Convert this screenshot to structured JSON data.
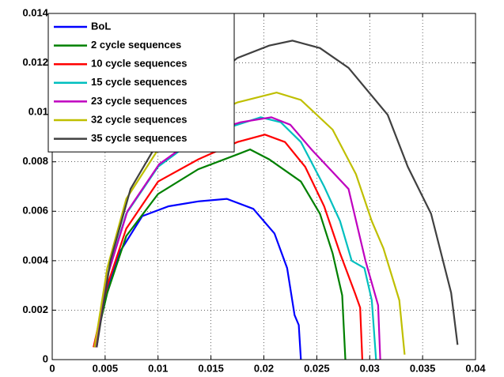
{
  "chart_data": {
    "type": "line",
    "xlim": [
      0,
      0.04
    ],
    "ylim": [
      0,
      0.014
    ],
    "xticks": [
      0,
      0.005,
      0.01,
      0.015,
      0.02,
      0.025,
      0.03,
      0.035,
      0.04
    ],
    "yticks": [
      0,
      0.002,
      0.004,
      0.006,
      0.008,
      0.01,
      0.012,
      0.014
    ],
    "grid": true,
    "legend": "northwest",
    "series": [
      {
        "name": "BoL",
        "color": "#0000ff",
        "x": [
          0.0042,
          0.0048,
          0.0063,
          0.0085,
          0.011,
          0.0138,
          0.0165,
          0.019,
          0.021,
          0.0222,
          0.0229,
          0.0233,
          0.0235
        ],
        "values": [
          0.0005,
          0.0024,
          0.0043,
          0.0058,
          0.0062,
          0.0064,
          0.0065,
          0.0061,
          0.0051,
          0.0037,
          0.0018,
          0.0014,
          0.0
        ]
      },
      {
        "name": "2 cycle sequences",
        "color": "#008000",
        "x": [
          0.004,
          0.0052,
          0.007,
          0.01,
          0.0138,
          0.0175,
          0.0187,
          0.0205,
          0.0235,
          0.0253,
          0.0265,
          0.0274,
          0.0277
        ],
        "values": [
          0.0005,
          0.0027,
          0.005,
          0.0067,
          0.0077,
          0.0083,
          0.0085,
          0.0081,
          0.0072,
          0.0059,
          0.0043,
          0.0026,
          0.0
        ]
      },
      {
        "name": "10 cycle sequences",
        "color": "#ff0000",
        "x": [
          0.0039,
          0.0052,
          0.007,
          0.01,
          0.0138,
          0.0175,
          0.0201,
          0.022,
          0.0239,
          0.0257,
          0.0272,
          0.0286,
          0.0291,
          0.0293
        ],
        "values": [
          0.0005,
          0.003,
          0.0053,
          0.0072,
          0.0081,
          0.0088,
          0.0091,
          0.0088,
          0.0078,
          0.0062,
          0.0043,
          0.0027,
          0.0021,
          0.0
        ]
      },
      {
        "name": "15 cycle sequences",
        "color": "#00bfbf",
        "x": [
          0.004,
          0.0052,
          0.007,
          0.01,
          0.0138,
          0.0175,
          0.0197,
          0.0216,
          0.0235,
          0.0257,
          0.0272,
          0.0283,
          0.0295,
          0.0302,
          0.0306
        ],
        "values": [
          0.0005,
          0.0034,
          0.0059,
          0.0078,
          0.009,
          0.0095,
          0.0098,
          0.0096,
          0.0088,
          0.007,
          0.0056,
          0.004,
          0.0037,
          0.0024,
          0.0
        ]
      },
      {
        "name": "23 cycle sequences",
        "color": "#bf00bf",
        "x": [
          0.0041,
          0.0053,
          0.0071,
          0.0101,
          0.014,
          0.0178,
          0.0207,
          0.0225,
          0.0245,
          0.028,
          0.0296,
          0.0308,
          0.031
        ],
        "values": [
          0.0005,
          0.0035,
          0.006,
          0.0079,
          0.0091,
          0.0096,
          0.0098,
          0.0095,
          0.0085,
          0.0069,
          0.004,
          0.0022,
          0.0
        ]
      },
      {
        "name": "32 cycle sequences",
        "color": "#bfbf00",
        "x": [
          0.004,
          0.0052,
          0.007,
          0.01,
          0.0138,
          0.0175,
          0.0212,
          0.0235,
          0.0265,
          0.0287,
          0.0302,
          0.0313,
          0.0328,
          0.0333
        ],
        "values": [
          0.0005,
          0.0037,
          0.0065,
          0.0085,
          0.0097,
          0.0104,
          0.0108,
          0.0105,
          0.0093,
          0.0075,
          0.0056,
          0.0045,
          0.0024,
          0.0002
        ]
      },
      {
        "name": "35 cycle sequences",
        "color": "#404040",
        "x": [
          0.0042,
          0.0055,
          0.0074,
          0.01,
          0.013,
          0.0175,
          0.0205,
          0.0227,
          0.0253,
          0.028,
          0.0317,
          0.0336,
          0.0358,
          0.0377,
          0.0383
        ],
        "values": [
          0.0005,
          0.004,
          0.0069,
          0.0088,
          0.0107,
          0.0122,
          0.0127,
          0.0129,
          0.0126,
          0.0118,
          0.0099,
          0.0078,
          0.0059,
          0.0027,
          0.0006
        ]
      }
    ]
  }
}
